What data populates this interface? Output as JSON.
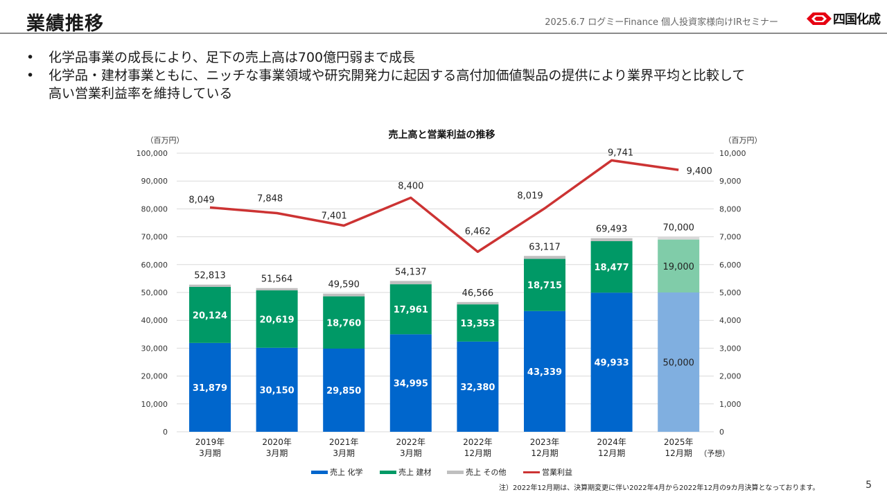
{
  "header": {
    "title": "業績推移",
    "event": "2025.6.7 ログミーFinance 個人投資家様向けIRセミナー",
    "logo_text": "四国化成"
  },
  "bullets": [
    "化学品事業の成長により、足下の売上高は700億円弱まで成長",
    "化学品・建材事業ともに、ニッチな事業領域や研究開発力に起因する高付加価値製品の提供により業界平均と比較して",
    "高い営業利益率を維持している"
  ],
  "bullet_marker": "•",
  "footnote": "注）2022年12月期は、決算期変更に伴い2022年4月から2022年12月の9カ月決算となっております。",
  "page_number": "5",
  "colors": {
    "chemical": "#0066cc",
    "building": "#009966",
    "other": "#bfbfbf",
    "profit": "#cc3333",
    "chemical_forecast": "#80afe0",
    "building_forecast": "#80cca9",
    "other_forecast": "#d9d9d9",
    "grid": "#d9d9d9",
    "axis_text": "#333333"
  },
  "chart_data": {
    "type": "bar",
    "stacked": true,
    "title": "売上高と営業利益の推移",
    "ylabel_left": "（百万円）",
    "ylabel_right": "（百万円）",
    "ylim_left": [
      0,
      100000
    ],
    "ylim_right": [
      0,
      10000
    ],
    "yticks_left": [
      "0",
      "10,000",
      "20,000",
      "30,000",
      "40,000",
      "50,000",
      "60,000",
      "70,000",
      "80,000",
      "90,000",
      "100,000"
    ],
    "yticks_right": [
      "0",
      "1,000",
      "2,000",
      "3,000",
      "4,000",
      "5,000",
      "6,000",
      "7,000",
      "8,000",
      "9,000",
      "10,000"
    ],
    "grid": true,
    "legend_position": "bottom",
    "categories": [
      [
        "2019年",
        "3月期"
      ],
      [
        "2020年",
        "3月期"
      ],
      [
        "2021年",
        "3月期"
      ],
      [
        "2022年",
        "3月期"
      ],
      [
        "2022年",
        "12月期"
      ],
      [
        "2023年",
        "12月期"
      ],
      [
        "2024年",
        "12月期"
      ],
      [
        "2025年",
        "12月期"
      ]
    ],
    "forecast_suffix": "（予想）",
    "forecast_index": 7,
    "series": [
      {
        "name": "売上 化学",
        "axis": "left",
        "labels": [
          "31,879",
          "30,150",
          "29,850",
          "34,995",
          "32,380",
          "43,339",
          "49,933",
          "50,000"
        ],
        "values": [
          31879,
          30150,
          29850,
          34995,
          32380,
          43339,
          49933,
          50000
        ]
      },
      {
        "name": "売上 建材",
        "axis": "left",
        "labels": [
          "20,124",
          "20,619",
          "18,760",
          "17,961",
          "13,353",
          "18,715",
          "18,477",
          "19,000"
        ],
        "values": [
          20124,
          20619,
          18760,
          17961,
          13353,
          18715,
          18477,
          19000
        ]
      },
      {
        "name": "売上 その他",
        "axis": "left",
        "values": [
          810,
          795,
          980,
          1181,
          833,
          1063,
          1083,
          1000
        ]
      },
      {
        "name": "営業利益",
        "axis": "right",
        "type": "line",
        "labels": [
          "8,049",
          "7,848",
          "7,401",
          "8,400",
          "6,462",
          "8,019",
          "9,741",
          "9,400"
        ],
        "values": [
          8049,
          7848,
          7401,
          8400,
          6462,
          8019,
          9741,
          9400
        ]
      }
    ],
    "totals": [
      52813,
      51564,
      49590,
      54137,
      46566,
      63117,
      69493,
      70000
    ],
    "total_labels": [
      "52,813",
      "51,564",
      "49,590",
      "54,137",
      "46,566",
      "63,117",
      "69,493",
      "70,000"
    ]
  }
}
